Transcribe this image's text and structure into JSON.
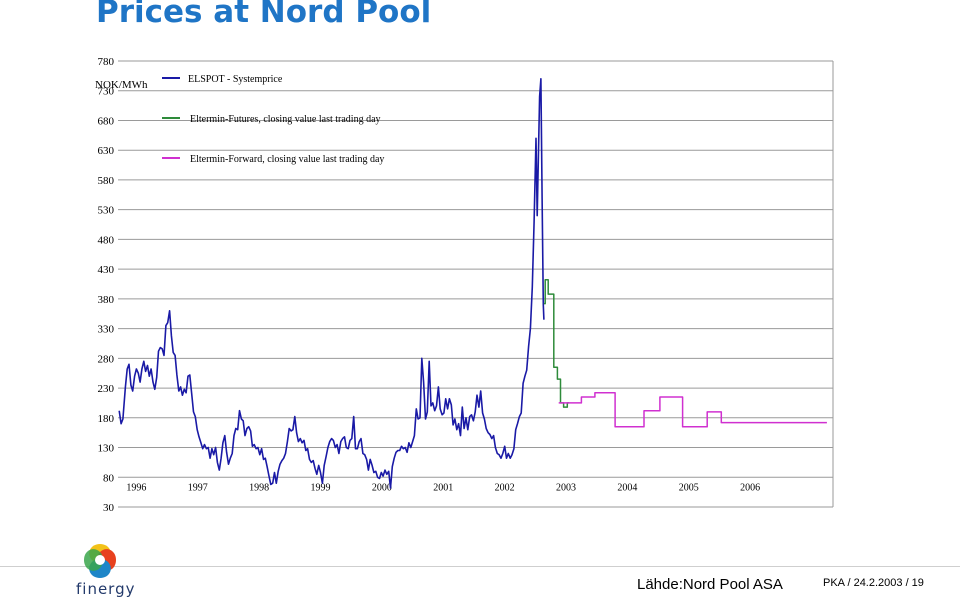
{
  "page": {
    "title": "Prices at Nord Pool",
    "source": "Lähde:Nord Pool ASA",
    "page_number": "PKA / 24.2.2003 / 19",
    "logo_text": "finergy"
  },
  "colors": {
    "title": "#1f75c6",
    "spot": "#1a1aa6",
    "futures": "#2e8b3a",
    "forward": "#d030d0",
    "grid": "#9a9a9a"
  },
  "chart_data": {
    "type": "line",
    "title": "",
    "ylabel": "NOK/MWh",
    "xlabel": "",
    "ylim": [
      30,
      780
    ],
    "xlim": [
      1995.85,
      2007.5
    ],
    "yticks": [
      "30",
      "80",
      "130",
      "180",
      "230",
      "280",
      "330",
      "380",
      "430",
      "480",
      "530",
      "580",
      "630",
      "680",
      "730",
      "780"
    ],
    "xticks": [
      "1996",
      "1997",
      "1998",
      "1999",
      "2000",
      "2001",
      "2002",
      "2003",
      "2004",
      "2005",
      "2006"
    ],
    "grid": true,
    "legend_position": "top-left",
    "series": [
      {
        "name": "ELSPOT - Systemprice",
        "color": "#1a1aa6",
        "points": [
          [
            1995.87,
            192
          ],
          [
            1995.9,
            170
          ],
          [
            1995.93,
            178
          ],
          [
            1995.97,
            232
          ],
          [
            1996.0,
            262
          ],
          [
            1996.03,
            270
          ],
          [
            1996.06,
            235
          ],
          [
            1996.09,
            225
          ],
          [
            1996.12,
            250
          ],
          [
            1996.15,
            262
          ],
          [
            1996.18,
            255
          ],
          [
            1996.21,
            240
          ],
          [
            1996.24,
            262
          ],
          [
            1996.27,
            275
          ],
          [
            1996.3,
            258
          ],
          [
            1996.33,
            268
          ],
          [
            1996.36,
            250
          ],
          [
            1996.39,
            262
          ],
          [
            1996.42,
            240
          ],
          [
            1996.45,
            228
          ],
          [
            1996.48,
            248
          ],
          [
            1996.51,
            292
          ],
          [
            1996.54,
            298
          ],
          [
            1996.57,
            296
          ],
          [
            1996.6,
            285
          ],
          [
            1996.63,
            335
          ],
          [
            1996.66,
            340
          ],
          [
            1996.69,
            360
          ],
          [
            1996.72,
            318
          ],
          [
            1996.75,
            290
          ],
          [
            1996.78,
            285
          ],
          [
            1996.81,
            252
          ],
          [
            1996.84,
            225
          ],
          [
            1996.87,
            232
          ],
          [
            1996.9,
            218
          ],
          [
            1996.93,
            228
          ],
          [
            1996.96,
            222
          ],
          [
            1996.99,
            250
          ],
          [
            1997.02,
            252
          ],
          [
            1997.05,
            222
          ],
          [
            1997.08,
            190
          ],
          [
            1997.11,
            182
          ],
          [
            1997.14,
            160
          ],
          [
            1997.17,
            148
          ],
          [
            1997.2,
            138
          ],
          [
            1997.23,
            128
          ],
          [
            1997.26,
            135
          ],
          [
            1997.29,
            128
          ],
          [
            1997.32,
            130
          ],
          [
            1997.35,
            112
          ],
          [
            1997.38,
            128
          ],
          [
            1997.41,
            118
          ],
          [
            1997.44,
            130
          ],
          [
            1997.47,
            105
          ],
          [
            1997.5,
            92
          ],
          [
            1997.53,
            112
          ],
          [
            1997.56,
            138
          ],
          [
            1997.59,
            150
          ],
          [
            1997.62,
            122
          ],
          [
            1997.65,
            102
          ],
          [
            1997.68,
            112
          ],
          [
            1997.71,
            120
          ],
          [
            1997.74,
            150
          ],
          [
            1997.77,
            162
          ],
          [
            1997.8,
            160
          ],
          [
            1997.83,
            192
          ],
          [
            1997.86,
            178
          ],
          [
            1997.89,
            175
          ],
          [
            1997.92,
            150
          ],
          [
            1997.95,
            162
          ],
          [
            1997.98,
            165
          ],
          [
            1998.01,
            158
          ],
          [
            1998.04,
            132
          ],
          [
            1998.07,
            135
          ],
          [
            1998.1,
            128
          ],
          [
            1998.13,
            130
          ],
          [
            1998.16,
            118
          ],
          [
            1998.19,
            128
          ],
          [
            1998.22,
            110
          ],
          [
            1998.25,
            112
          ],
          [
            1998.28,
            98
          ],
          [
            1998.31,
            82
          ],
          [
            1998.34,
            68
          ],
          [
            1998.37,
            70
          ],
          [
            1998.4,
            88
          ],
          [
            1998.43,
            70
          ],
          [
            1998.46,
            90
          ],
          [
            1998.49,
            102
          ],
          [
            1998.52,
            108
          ],
          [
            1998.55,
            112
          ],
          [
            1998.58,
            120
          ],
          [
            1998.61,
            140
          ],
          [
            1998.64,
            162
          ],
          [
            1998.67,
            158
          ],
          [
            1998.7,
            160
          ],
          [
            1998.73,
            182
          ],
          [
            1998.76,
            155
          ],
          [
            1998.79,
            140
          ],
          [
            1998.82,
            145
          ],
          [
            1998.85,
            138
          ],
          [
            1998.88,
            142
          ],
          [
            1998.91,
            125
          ],
          [
            1998.94,
            128
          ],
          [
            1998.97,
            110
          ],
          [
            1999.0,
            105
          ],
          [
            1999.03,
            108
          ],
          [
            1999.06,
            95
          ],
          [
            1999.09,
            85
          ],
          [
            1999.12,
            100
          ],
          [
            1999.15,
            88
          ],
          [
            1999.18,
            70
          ],
          [
            1999.21,
            100
          ],
          [
            1999.24,
            115
          ],
          [
            1999.27,
            130
          ],
          [
            1999.3,
            140
          ],
          [
            1999.33,
            145
          ],
          [
            1999.36,
            142
          ],
          [
            1999.39,
            130
          ],
          [
            1999.42,
            135
          ],
          [
            1999.45,
            120
          ],
          [
            1999.48,
            140
          ],
          [
            1999.51,
            145
          ],
          [
            1999.54,
            148
          ],
          [
            1999.57,
            130
          ],
          [
            1999.6,
            128
          ],
          [
            1999.63,
            142
          ],
          [
            1999.66,
            145
          ],
          [
            1999.69,
            182
          ],
          [
            1999.72,
            128
          ],
          [
            1999.75,
            128
          ],
          [
            1999.78,
            140
          ],
          [
            1999.81,
            145
          ],
          [
            1999.84,
            120
          ],
          [
            1999.87,
            118
          ],
          [
            1999.9,
            110
          ],
          [
            1999.93,
            92
          ],
          [
            1999.96,
            110
          ],
          [
            1999.99,
            100
          ],
          [
            2000.02,
            88
          ],
          [
            2000.05,
            90
          ],
          [
            2000.08,
            80
          ],
          [
            2000.11,
            78
          ],
          [
            2000.14,
            88
          ],
          [
            2000.17,
            82
          ],
          [
            2000.2,
            92
          ],
          [
            2000.23,
            85
          ],
          [
            2000.26,
            90
          ],
          [
            2000.29,
            62
          ],
          [
            2000.32,
            98
          ],
          [
            2000.35,
            112
          ],
          [
            2000.38,
            122
          ],
          [
            2000.41,
            125
          ],
          [
            2000.44,
            125
          ],
          [
            2000.47,
            132
          ],
          [
            2000.5,
            128
          ],
          [
            2000.53,
            130
          ],
          [
            2000.56,
            122
          ],
          [
            2000.59,
            138
          ],
          [
            2000.62,
            130
          ],
          [
            2000.65,
            140
          ],
          [
            2000.68,
            150
          ],
          [
            2000.71,
            195
          ],
          [
            2000.74,
            178
          ],
          [
            2000.77,
            180
          ],
          [
            2000.8,
            280
          ],
          [
            2000.83,
            240
          ],
          [
            2000.86,
            178
          ],
          [
            2000.89,
            190
          ],
          [
            2000.92,
            275
          ],
          [
            2000.95,
            200
          ],
          [
            2000.98,
            205
          ],
          [
            2001.01,
            192
          ],
          [
            2001.04,
            200
          ],
          [
            2001.07,
            232
          ],
          [
            2001.1,
            195
          ],
          [
            2001.13,
            185
          ],
          [
            2001.16,
            188
          ],
          [
            2001.19,
            212
          ],
          [
            2001.22,
            195
          ],
          [
            2001.25,
            212
          ],
          [
            2001.28,
            202
          ],
          [
            2001.31,
            168
          ],
          [
            2001.34,
            178
          ],
          [
            2001.37,
            160
          ],
          [
            2001.4,
            170
          ],
          [
            2001.43,
            150
          ],
          [
            2001.46,
            198
          ],
          [
            2001.49,
            162
          ],
          [
            2001.52,
            180
          ],
          [
            2001.55,
            160
          ],
          [
            2001.58,
            182
          ],
          [
            2001.61,
            185
          ],
          [
            2001.64,
            175
          ],
          [
            2001.67,
            190
          ],
          [
            2001.7,
            218
          ],
          [
            2001.73,
            198
          ],
          [
            2001.76,
            225
          ],
          [
            2001.79,
            188
          ],
          [
            2001.82,
            178
          ],
          [
            2001.85,
            162
          ],
          [
            2001.88,
            155
          ],
          [
            2001.91,
            152
          ],
          [
            2001.94,
            145
          ],
          [
            2001.97,
            150
          ],
          [
            2002.0,
            130
          ],
          [
            2002.03,
            120
          ],
          [
            2002.06,
            118
          ],
          [
            2002.09,
            112
          ],
          [
            2002.12,
            120
          ],
          [
            2002.15,
            132
          ],
          [
            2002.18,
            112
          ],
          [
            2002.21,
            120
          ],
          [
            2002.24,
            112
          ],
          [
            2002.27,
            118
          ],
          [
            2002.3,
            128
          ],
          [
            2002.33,
            160
          ],
          [
            2002.36,
            170
          ],
          [
            2002.39,
            182
          ],
          [
            2002.42,
            188
          ],
          [
            2002.45,
            238
          ],
          [
            2002.48,
            250
          ],
          [
            2002.51,
            260
          ],
          [
            2002.54,
            300
          ],
          [
            2002.57,
            330
          ],
          [
            2002.6,
            400
          ],
          [
            2002.63,
            510
          ],
          [
            2002.66,
            650
          ],
          [
            2002.68,
            520
          ],
          [
            2002.7,
            620
          ],
          [
            2002.72,
            720
          ],
          [
            2002.74,
            750
          ],
          [
            2002.76,
            550
          ],
          [
            2002.78,
            370
          ],
          [
            2002.79,
            345
          ]
        ]
      },
      {
        "name": "Eltermin-Futures, closing value last trading day",
        "color": "#2e8b3a",
        "points": [
          [
            2002.79,
            372
          ],
          [
            2002.81,
            372
          ],
          [
            2002.81,
            412
          ],
          [
            2002.86,
            412
          ],
          [
            2002.86,
            388
          ],
          [
            2002.95,
            388
          ],
          [
            2002.95,
            265
          ],
          [
            2003.01,
            265
          ],
          [
            2003.01,
            245
          ],
          [
            2003.06,
            245
          ],
          [
            2003.06,
            205
          ],
          [
            2003.11,
            205
          ],
          [
            2003.11,
            198
          ],
          [
            2003.17,
            198
          ],
          [
            2003.17,
            205
          ],
          [
            2003.2,
            205
          ]
        ]
      },
      {
        "name": "Eltermin-Forward, closing value last trading day",
        "color": "#d030d0",
        "points": [
          [
            2003.03,
            205
          ],
          [
            2003.4,
            205
          ],
          [
            2003.4,
            215
          ],
          [
            2003.62,
            215
          ],
          [
            2003.62,
            222
          ],
          [
            2003.95,
            222
          ],
          [
            2003.95,
            165
          ],
          [
            2004.42,
            165
          ],
          [
            2004.42,
            192
          ],
          [
            2004.68,
            192
          ],
          [
            2004.68,
            215
          ],
          [
            2005.05,
            215
          ],
          [
            2005.05,
            165
          ],
          [
            2005.45,
            165
          ],
          [
            2005.45,
            190
          ],
          [
            2005.68,
            190
          ],
          [
            2005.68,
            172
          ],
          [
            2006.4,
            172
          ],
          [
            2006.4,
            172
          ],
          [
            2007.4,
            172
          ]
        ]
      }
    ]
  }
}
